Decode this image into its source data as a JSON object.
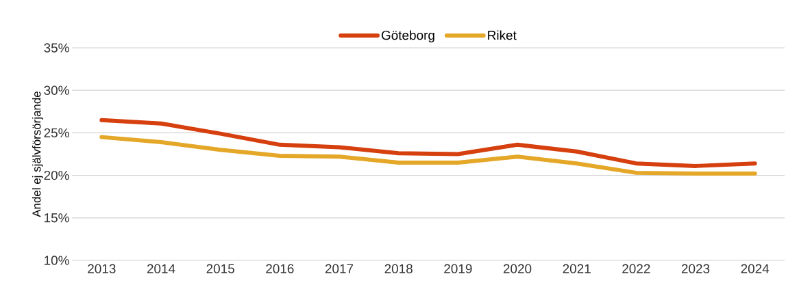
{
  "chart_data": {
    "type": "line",
    "ylabel": "Andel ej självförsörjande",
    "categories": [
      "2013",
      "2014",
      "2015",
      "2016",
      "2017",
      "2018",
      "2019",
      "2020",
      "2021",
      "2022",
      "2023",
      "2024"
    ],
    "series": [
      {
        "name": "Göteborg",
        "color": "#d63f0e",
        "values": [
          26.5,
          26.1,
          24.9,
          23.6,
          23.3,
          22.6,
          22.5,
          23.6,
          22.8,
          21.4,
          21.1,
          21.4
        ]
      },
      {
        "name": "Riket",
        "color": "#e4a728",
        "values": [
          24.5,
          23.9,
          23.0,
          22.3,
          22.2,
          21.5,
          21.5,
          22.2,
          21.4,
          20.3,
          20.2,
          20.2
        ]
      }
    ],
    "ylim": [
      10,
      35
    ],
    "yticks": [
      {
        "value": 10,
        "label": "10%"
      },
      {
        "value": 15,
        "label": "15%"
      },
      {
        "value": 20,
        "label": "20%"
      },
      {
        "value": 25,
        "label": "25%"
      },
      {
        "value": 30,
        "label": "30%"
      },
      {
        "value": 35,
        "label": "35%"
      }
    ],
    "grid": "y",
    "legend": "top",
    "line_style": "solid"
  }
}
